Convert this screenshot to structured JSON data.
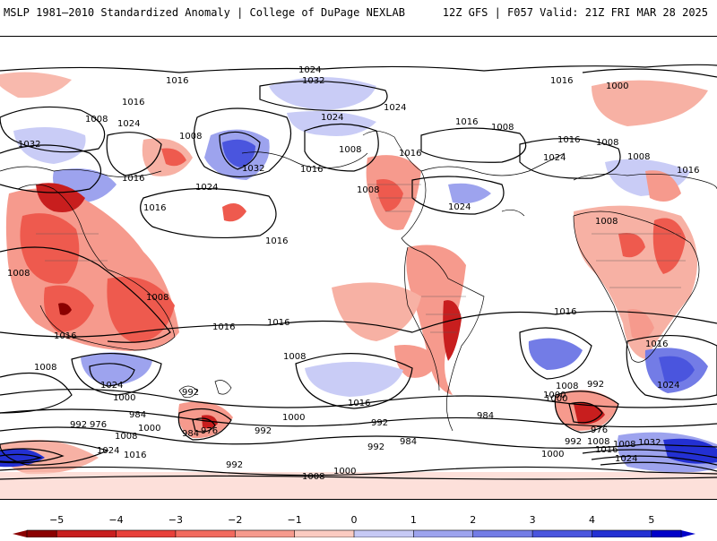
{
  "header": {
    "left_title": "MSLP 1981–2010 Standardized Anomaly | College of DuPage NEXLAB",
    "right_title": "12Z GFS | F057 Valid: 21Z FRI MAR 28 2025"
  },
  "contour_labels": [
    {
      "text": "1016"
    },
    {
      "text": "1024"
    },
    {
      "text": "1032"
    },
    {
      "text": "1008"
    },
    {
      "text": "1016"
    },
    {
      "text": "1024"
    },
    {
      "text": "1016"
    },
    {
      "text": "1000"
    },
    {
      "text": "1032"
    },
    {
      "text": "1024"
    },
    {
      "text": "1008"
    },
    {
      "text": "1008"
    },
    {
      "text": "1016"
    },
    {
      "text": "1024"
    },
    {
      "text": "1016"
    },
    {
      "text": "1016"
    },
    {
      "text": "1024"
    },
    {
      "text": "1032"
    },
    {
      "text": "1016"
    },
    {
      "text": "1024"
    },
    {
      "text": "1024"
    },
    {
      "text": "1008"
    },
    {
      "text": "1016"
    },
    {
      "text": "1008"
    },
    {
      "text": "1008"
    },
    {
      "text": "1008"
    },
    {
      "text": "1016"
    },
    {
      "text": "1016"
    },
    {
      "text": "1016"
    },
    {
      "text": "1016"
    },
    {
      "text": "1016"
    },
    {
      "text": "1008"
    },
    {
      "text": "1016"
    },
    {
      "text": "1008"
    },
    {
      "text": "1016"
    },
    {
      "text": "1008"
    },
    {
      "text": "1008"
    },
    {
      "text": "1024"
    },
    {
      "text": "1000"
    },
    {
      "text": "992"
    },
    {
      "text": "984"
    },
    {
      "text": "976"
    },
    {
      "text": "992"
    },
    {
      "text": "1000"
    },
    {
      "text": "1008"
    },
    {
      "text": "984"
    },
    {
      "text": "976"
    },
    {
      "text": "992"
    },
    {
      "text": "1024"
    },
    {
      "text": "1016"
    },
    {
      "text": "1000"
    },
    {
      "text": "992"
    },
    {
      "text": "984"
    },
    {
      "text": "992"
    },
    {
      "text": "1016"
    },
    {
      "text": "984"
    },
    {
      "text": "1008"
    },
    {
      "text": "1000"
    },
    {
      "text": "1008"
    },
    {
      "text": "992"
    },
    {
      "text": "976"
    },
    {
      "text": "992"
    },
    {
      "text": "1008"
    },
    {
      "text": "1000"
    },
    {
      "text": "1016"
    },
    {
      "text": "1032"
    },
    {
      "text": "1024"
    },
    {
      "text": "1024"
    },
    {
      "text": "1000"
    },
    {
      "text": "1008"
    },
    {
      "text": "1000"
    },
    {
      "text": "992"
    },
    {
      "text": "1016"
    },
    {
      "text": "1008"
    }
  ],
  "colorbar": {
    "ticks": [
      {
        "label": "−5",
        "value": -5
      },
      {
        "label": "−4",
        "value": -4
      },
      {
        "label": "−3",
        "value": -3
      },
      {
        "label": "−2",
        "value": -2
      },
      {
        "label": "−1",
        "value": -1
      },
      {
        "label": "0",
        "value": 0
      },
      {
        "label": "1",
        "value": 1
      },
      {
        "label": "2",
        "value": 2
      },
      {
        "label": "3",
        "value": 3
      },
      {
        "label": "4",
        "value": 4
      },
      {
        "label": "5",
        "value": 5
      }
    ],
    "negative_colors": [
      "#8b0000",
      "#c81e1e",
      "#e8403a",
      "#f26a5e",
      "#f69a8d",
      "#fbcbc1"
    ],
    "positive_colors": [
      "#c6c9f5",
      "#9da3ee",
      "#737ce6",
      "#4a55de",
      "#2330d3",
      "#0000c8"
    ]
  },
  "colors": {
    "negative_anomaly": "#ee5a4e",
    "light_negative": "#f7b1a4",
    "positive_anomaly": "#7a82e8",
    "light_positive": "#c9ccf6",
    "isobar": "#000000",
    "coastline": "#000000"
  }
}
